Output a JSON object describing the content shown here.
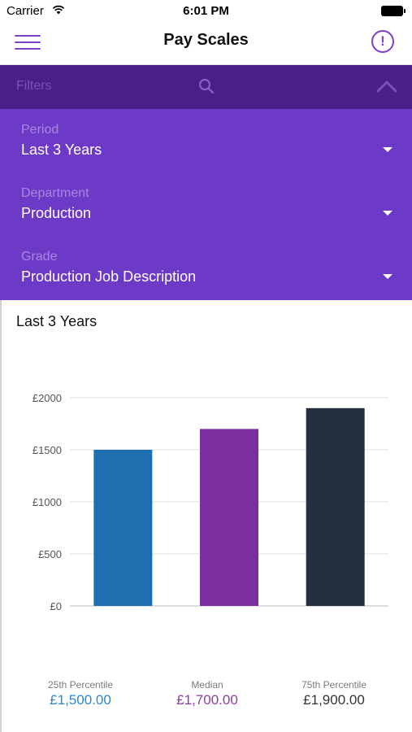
{
  "status_bar": {
    "carrier": "Carrier",
    "time": "6:01 PM"
  },
  "nav": {
    "title": "Pay Scales",
    "info_symbol": "!",
    "menu_icon": "hamburger-menu-icon",
    "info_icon": "info-circle-icon"
  },
  "filters": {
    "label": "Filters",
    "search_icon": "search-icon",
    "collapse_icon": "chevron-up-icon",
    "fields": [
      {
        "label": "Period",
        "value": "Last 3 Years"
      },
      {
        "label": "Department",
        "value": "Production"
      },
      {
        "label": "Grade",
        "value": "Production Job Description"
      }
    ]
  },
  "colors": {
    "accent": "#7b3fc9",
    "filter_bar": "#4a1f8a",
    "filters_panel": "#6c3ac7",
    "bar_25th": "#1f6fb0",
    "bar_median": "#7b2e9e",
    "bar_75th": "#22303f"
  },
  "chart_data": {
    "type": "bar",
    "title": "Last 3 Years",
    "categories": [
      "25th Percentile",
      "Median",
      "75th Percentile"
    ],
    "values": [
      1500,
      1700,
      1900
    ],
    "value_labels": [
      "£1,500.00",
      "£1,700.00",
      "£1,900.00"
    ],
    "y_ticks": [
      "£0",
      "£500",
      "£1000",
      "£1500",
      "£2000"
    ],
    "y_tick_values": [
      0,
      500,
      1000,
      1500,
      2000
    ],
    "ylim": [
      0,
      2000
    ],
    "grid": true,
    "bar_colors": [
      "#1f6fb0",
      "#7b2e9e",
      "#22303f"
    ],
    "label_colors": [
      "#2e86c9",
      "#8e3ba6",
      "#333333"
    ]
  }
}
